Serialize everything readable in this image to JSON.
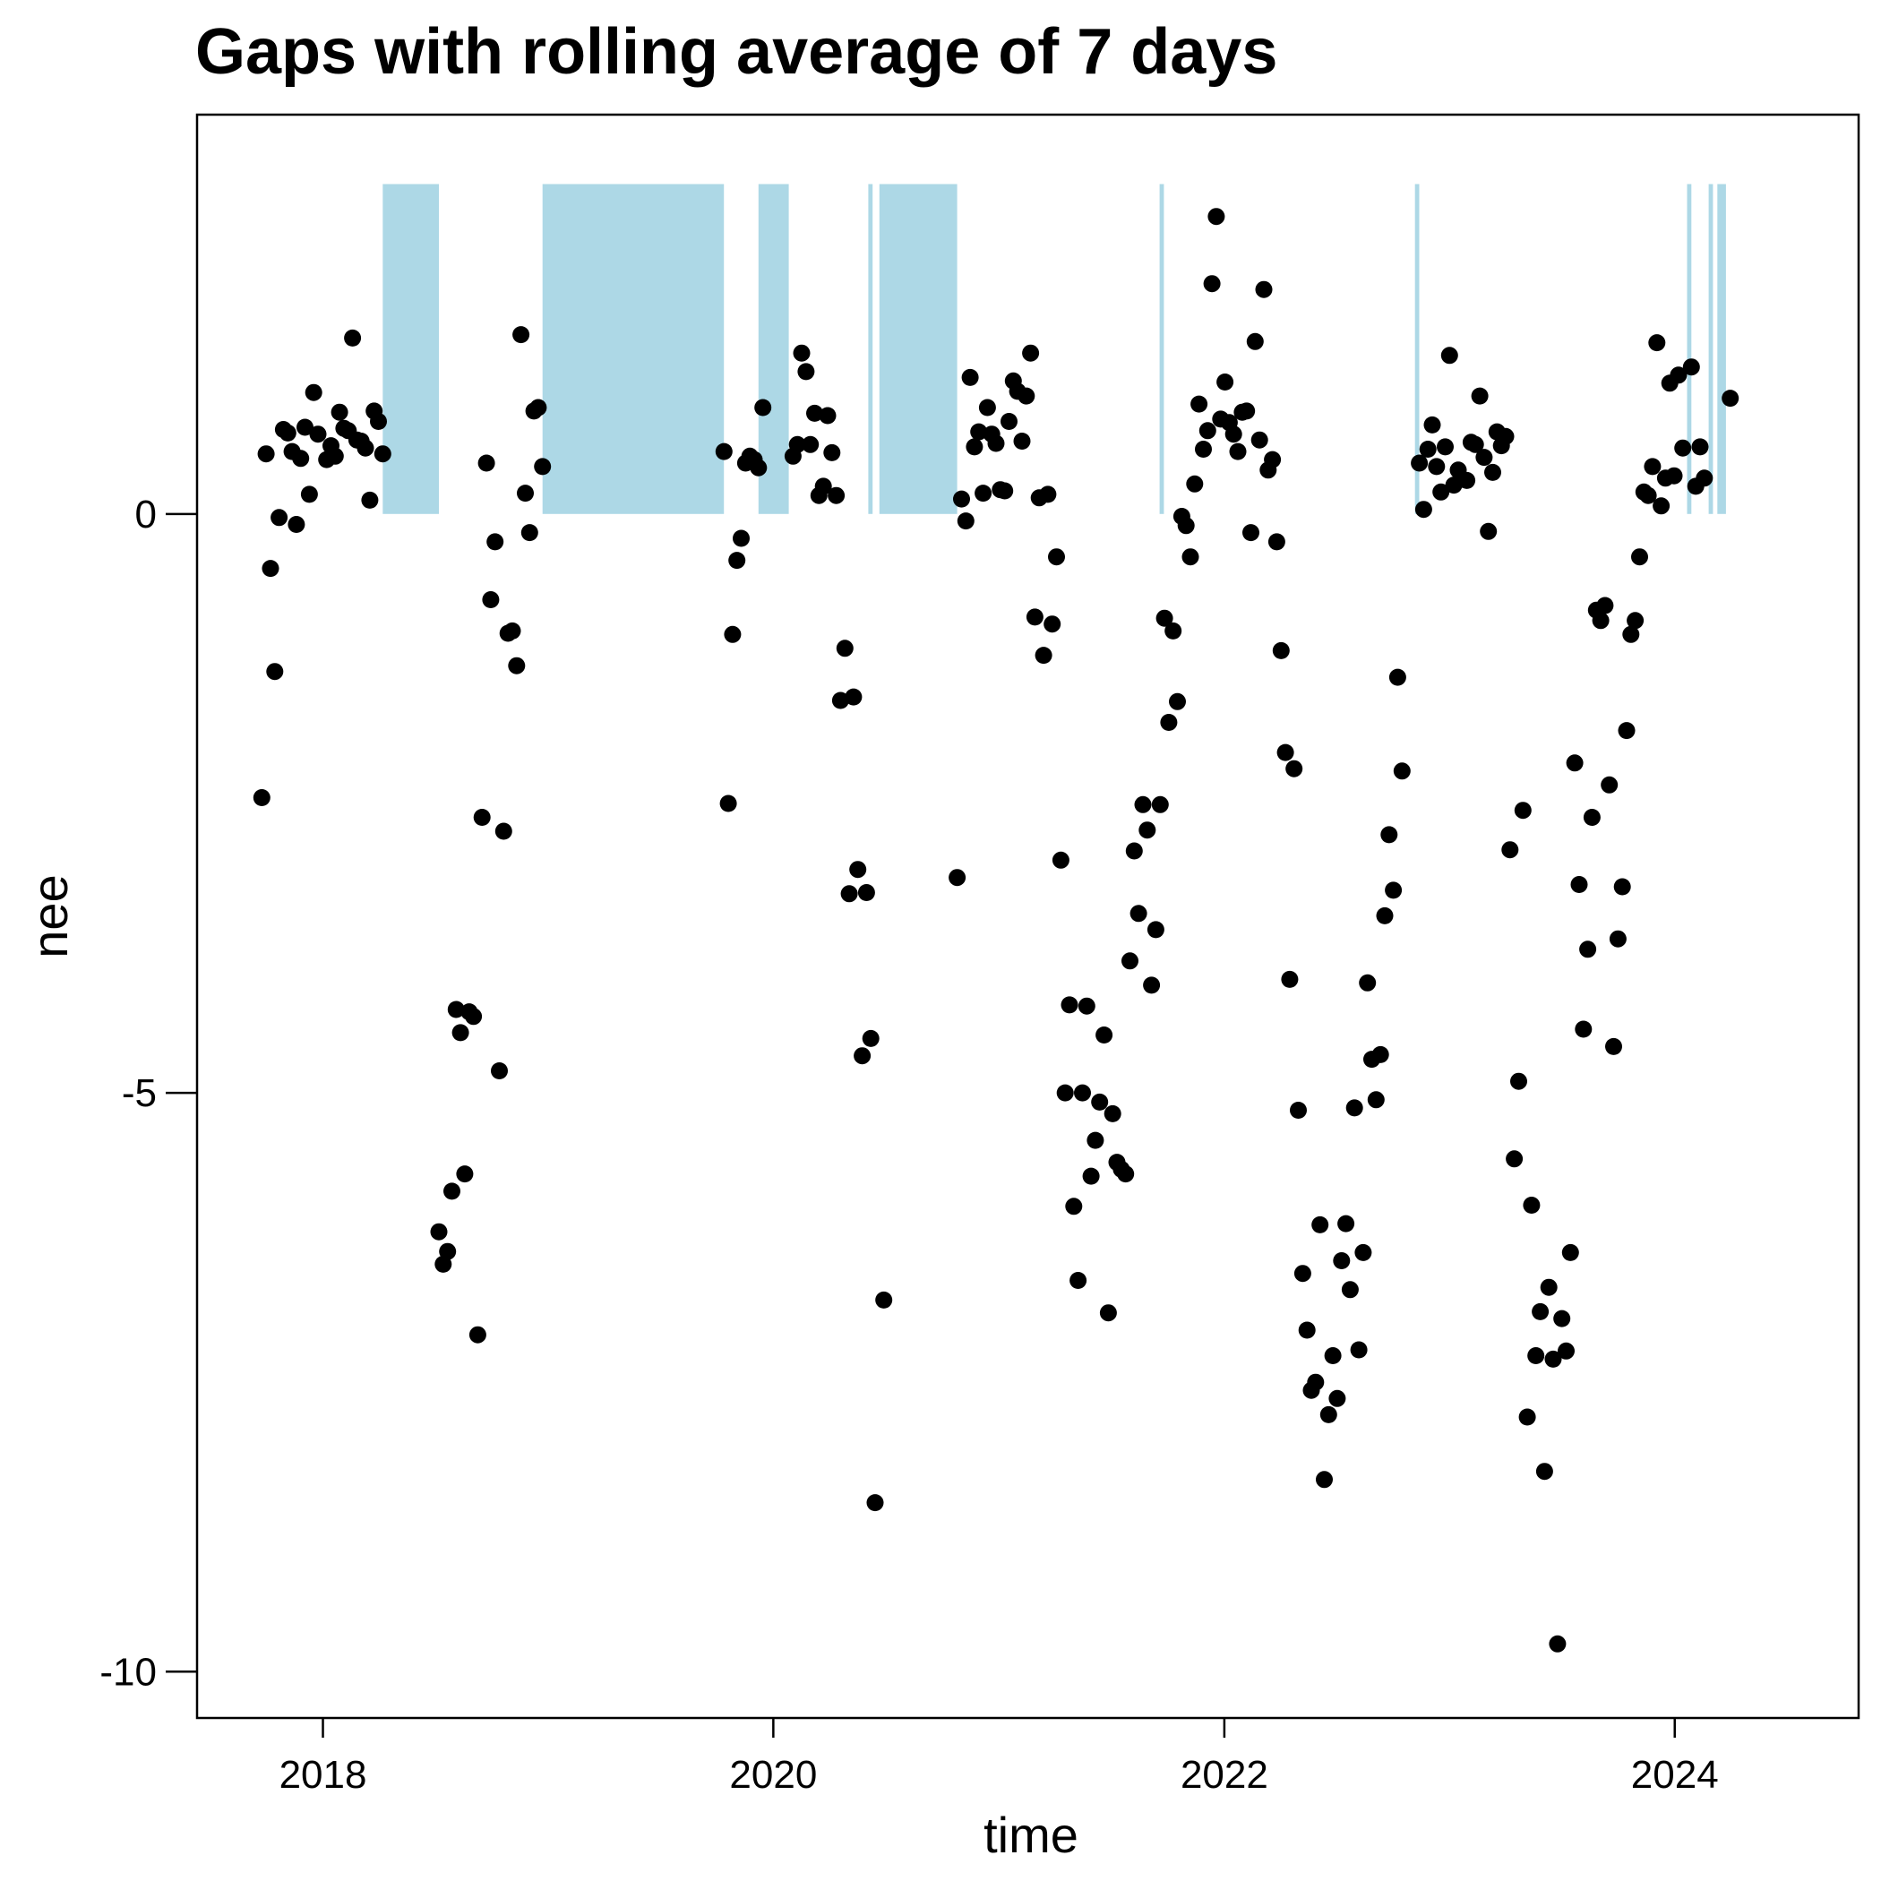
{
  "chart_data": {
    "type": "scatter",
    "title": "Gaps with rolling average of 7 days",
    "xlabel": "time",
    "ylabel": "nee",
    "xlim": [
      "2017-06-11",
      "2024-10-25"
    ],
    "ylim": [
      -10.4,
      3.45
    ],
    "x_ticks": [
      {
        "date": "2018-01-01",
        "label": "2018"
      },
      {
        "date": "2020-01-01",
        "label": "2020"
      },
      {
        "date": "2022-01-01",
        "label": "2022"
      },
      {
        "date": "2024-01-01",
        "label": "2024"
      }
    ],
    "y_ticks": [
      {
        "value": 0,
        "label": "0"
      },
      {
        "value": -5,
        "label": "-5"
      },
      {
        "value": -10,
        "label": "-10"
      }
    ],
    "gap_band_color": "#add8e6",
    "point_color": "#000000",
    "gap_bands": {
      "y_from": 0,
      "y_to": 2.85,
      "ranges": [
        [
          "2018-04-08",
          "2018-07-08"
        ],
        [
          "2018-12-23",
          "2019-10-13"
        ],
        [
          "2019-12-08",
          "2020-01-26"
        ],
        [
          "2020-06-03",
          "2020-06-10"
        ],
        [
          "2020-06-21",
          "2020-10-25"
        ],
        [
          "2021-09-18",
          "2021-09-25"
        ],
        [
          "2022-11-06",
          "2022-11-13"
        ],
        [
          "2024-01-21",
          "2024-01-28"
        ],
        [
          "2024-02-25",
          "2024-03-03"
        ],
        [
          "2024-03-10",
          "2024-03-24"
        ]
      ]
    },
    "points": [
      {
        "x": "2017-09-24",
        "y": -2.45
      },
      {
        "x": "2017-10-01",
        "y": 0.52
      },
      {
        "x": "2017-10-08",
        "y": -0.47
      },
      {
        "x": "2017-10-15",
        "y": -1.36
      },
      {
        "x": "2017-10-22",
        "y": -0.03
      },
      {
        "x": "2017-10-29",
        "y": 0.73
      },
      {
        "x": "2017-11-05",
        "y": 0.7
      },
      {
        "x": "2017-11-12",
        "y": 0.54
      },
      {
        "x": "2017-11-19",
        "y": -0.09
      },
      {
        "x": "2017-11-26",
        "y": 0.48
      },
      {
        "x": "2017-12-03",
        "y": 0.75
      },
      {
        "x": "2017-12-10",
        "y": 0.17
      },
      {
        "x": "2017-12-17",
        "y": 1.05
      },
      {
        "x": "2017-12-24",
        "y": 0.69
      },
      {
        "x": "2018-01-07",
        "y": 0.47
      },
      {
        "x": "2018-01-14",
        "y": 0.59
      },
      {
        "x": "2018-01-21",
        "y": 0.5
      },
      {
        "x": "2018-01-28",
        "y": 0.88
      },
      {
        "x": "2018-02-04",
        "y": 0.74
      },
      {
        "x": "2018-02-11",
        "y": 0.72
      },
      {
        "x": "2018-02-18",
        "y": 1.52
      },
      {
        "x": "2018-02-25",
        "y": 0.64
      },
      {
        "x": "2018-03-04",
        "y": 0.63
      },
      {
        "x": "2018-03-11",
        "y": 0.57
      },
      {
        "x": "2018-03-18",
        "y": 0.12
      },
      {
        "x": "2018-03-25",
        "y": 0.89
      },
      {
        "x": "2018-04-01",
        "y": 0.8
      },
      {
        "x": "2018-04-08",
        "y": 0.52
      },
      {
        "x": "2018-07-08",
        "y": -6.2
      },
      {
        "x": "2018-07-15",
        "y": -6.48
      },
      {
        "x": "2018-07-22",
        "y": -6.37
      },
      {
        "x": "2018-07-29",
        "y": -5.85
      },
      {
        "x": "2018-08-05",
        "y": -4.28
      },
      {
        "x": "2018-08-12",
        "y": -4.48
      },
      {
        "x": "2018-08-19",
        "y": -5.7
      },
      {
        "x": "2018-08-26",
        "y": -4.3
      },
      {
        "x": "2018-09-02",
        "y": -4.34
      },
      {
        "x": "2018-09-09",
        "y": -7.09
      },
      {
        "x": "2018-09-16",
        "y": -2.62
      },
      {
        "x": "2018-09-23",
        "y": 0.44
      },
      {
        "x": "2018-09-30",
        "y": -0.74
      },
      {
        "x": "2018-10-07",
        "y": -0.24
      },
      {
        "x": "2018-10-14",
        "y": -4.81
      },
      {
        "x": "2018-10-21",
        "y": -2.74
      },
      {
        "x": "2018-10-28",
        "y": -1.03
      },
      {
        "x": "2018-11-04",
        "y": -1.01
      },
      {
        "x": "2018-11-11",
        "y": -1.31
      },
      {
        "x": "2018-11-18",
        "y": 1.55
      },
      {
        "x": "2018-11-25",
        "y": 0.18
      },
      {
        "x": "2018-12-02",
        "y": -0.16
      },
      {
        "x": "2018-12-09",
        "y": 0.89
      },
      {
        "x": "2018-12-16",
        "y": 0.92
      },
      {
        "x": "2018-12-23",
        "y": 0.41
      },
      {
        "x": "2019-10-13",
        "y": 0.54
      },
      {
        "x": "2019-10-20",
        "y": -2.5
      },
      {
        "x": "2019-10-27",
        "y": -1.04
      },
      {
        "x": "2019-11-03",
        "y": -0.4
      },
      {
        "x": "2019-11-10",
        "y": -0.21
      },
      {
        "x": "2019-11-17",
        "y": 0.44
      },
      {
        "x": "2019-11-24",
        "y": 0.5
      },
      {
        "x": "2019-12-01",
        "y": 0.47
      },
      {
        "x": "2019-12-08",
        "y": 0.4
      },
      {
        "x": "2019-12-15",
        "y": 0.92
      },
      {
        "x": "2020-02-02",
        "y": 0.5
      },
      {
        "x": "2020-02-09",
        "y": 0.6
      },
      {
        "x": "2020-02-16",
        "y": 1.39
      },
      {
        "x": "2020-02-23",
        "y": 1.23
      },
      {
        "x": "2020-03-01",
        "y": 0.6
      },
      {
        "x": "2020-03-08",
        "y": 0.87
      },
      {
        "x": "2020-03-15",
        "y": 0.16
      },
      {
        "x": "2020-03-22",
        "y": 0.24
      },
      {
        "x": "2020-03-29",
        "y": 0.85
      },
      {
        "x": "2020-04-05",
        "y": 0.53
      },
      {
        "x": "2020-04-12",
        "y": 0.16
      },
      {
        "x": "2020-04-19",
        "y": -1.61
      },
      {
        "x": "2020-04-26",
        "y": -1.16
      },
      {
        "x": "2020-05-03",
        "y": -3.28
      },
      {
        "x": "2020-05-10",
        "y": -1.58
      },
      {
        "x": "2020-05-17",
        "y": -3.07
      },
      {
        "x": "2020-05-24",
        "y": -4.68
      },
      {
        "x": "2020-05-31",
        "y": -3.27
      },
      {
        "x": "2020-06-07",
        "y": -4.53
      },
      {
        "x": "2020-06-14",
        "y": -8.54
      },
      {
        "x": "2020-06-28",
        "y": -6.79
      },
      {
        "x": "2020-10-25",
        "y": -3.14
      },
      {
        "x": "2020-11-01",
        "y": 0.13
      },
      {
        "x": "2020-11-08",
        "y": -0.06
      },
      {
        "x": "2020-11-15",
        "y": 1.18
      },
      {
        "x": "2020-11-22",
        "y": 0.58
      },
      {
        "x": "2020-11-29",
        "y": 0.71
      },
      {
        "x": "2020-12-06",
        "y": 0.18
      },
      {
        "x": "2020-12-13",
        "y": 0.92
      },
      {
        "x": "2020-12-20",
        "y": 0.69
      },
      {
        "x": "2020-12-27",
        "y": 0.61
      },
      {
        "x": "2021-01-03",
        "y": 0.21
      },
      {
        "x": "2021-01-10",
        "y": 0.2
      },
      {
        "x": "2021-01-17",
        "y": 0.8
      },
      {
        "x": "2021-01-24",
        "y": 1.15
      },
      {
        "x": "2021-01-31",
        "y": 1.06
      },
      {
        "x": "2021-02-07",
        "y": 0.63
      },
      {
        "x": "2021-02-14",
        "y": 1.02
      },
      {
        "x": "2021-02-21",
        "y": 1.39
      },
      {
        "x": "2021-02-28",
        "y": -0.89
      },
      {
        "x": "2021-03-07",
        "y": 0.14
      },
      {
        "x": "2021-03-14",
        "y": -1.22
      },
      {
        "x": "2021-03-21",
        "y": 0.17
      },
      {
        "x": "2021-03-28",
        "y": -0.95
      },
      {
        "x": "2021-04-04",
        "y": -0.37
      },
      {
        "x": "2021-04-11",
        "y": -2.99
      },
      {
        "x": "2021-04-18",
        "y": -5
      },
      {
        "x": "2021-04-25",
        "y": -4.24
      },
      {
        "x": "2021-05-02",
        "y": -5.98
      },
      {
        "x": "2021-05-09",
        "y": -6.62
      },
      {
        "x": "2021-05-16",
        "y": -5
      },
      {
        "x": "2021-05-23",
        "y": -4.25
      },
      {
        "x": "2021-05-30",
        "y": -5.72
      },
      {
        "x": "2021-06-06",
        "y": -5.41
      },
      {
        "x": "2021-06-13",
        "y": -5.08
      },
      {
        "x": "2021-06-20",
        "y": -4.5
      },
      {
        "x": "2021-06-27",
        "y": -6.9
      },
      {
        "x": "2021-07-04",
        "y": -5.18
      },
      {
        "x": "2021-07-11",
        "y": -5.6
      },
      {
        "x": "2021-07-18",
        "y": -5.66
      },
      {
        "x": "2021-07-25",
        "y": -5.7
      },
      {
        "x": "2021-08-01",
        "y": -3.86
      },
      {
        "x": "2021-08-08",
        "y": -2.91
      },
      {
        "x": "2021-08-15",
        "y": -3.45
      },
      {
        "x": "2021-08-22",
        "y": -2.51
      },
      {
        "x": "2021-08-29",
        "y": -2.73
      },
      {
        "x": "2021-09-05",
        "y": -4.07
      },
      {
        "x": "2021-09-12",
        "y": -3.59
      },
      {
        "x": "2021-09-19",
        "y": -2.51
      },
      {
        "x": "2021-09-26",
        "y": -0.9
      },
      {
        "x": "2021-10-03",
        "y": -1.8
      },
      {
        "x": "2021-10-10",
        "y": -1.01
      },
      {
        "x": "2021-10-17",
        "y": -1.62
      },
      {
        "x": "2021-10-24",
        "y": -0.02
      },
      {
        "x": "2021-10-31",
        "y": -0.1
      },
      {
        "x": "2021-11-07",
        "y": -0.37
      },
      {
        "x": "2021-11-14",
        "y": 0.26
      },
      {
        "x": "2021-11-21",
        "y": 0.95
      },
      {
        "x": "2021-11-28",
        "y": 0.56
      },
      {
        "x": "2021-12-05",
        "y": 0.72
      },
      {
        "x": "2021-12-12",
        "y": 1.99
      },
      {
        "x": "2021-12-19",
        "y": 2.57
      },
      {
        "x": "2021-12-26",
        "y": 0.82
      },
      {
        "x": "2022-01-02",
        "y": 1.14
      },
      {
        "x": "2022-01-09",
        "y": 0.79
      },
      {
        "x": "2022-01-16",
        "y": 0.69
      },
      {
        "x": "2022-01-23",
        "y": 0.54
      },
      {
        "x": "2022-01-30",
        "y": 0.88
      },
      {
        "x": "2022-02-06",
        "y": 0.89
      },
      {
        "x": "2022-02-13",
        "y": -0.16
      },
      {
        "x": "2022-02-20",
        "y": 1.49
      },
      {
        "x": "2022-02-27",
        "y": 0.64
      },
      {
        "x": "2022-03-06",
        "y": 1.94
      },
      {
        "x": "2022-03-13",
        "y": 0.38
      },
      {
        "x": "2022-03-20",
        "y": 0.47
      },
      {
        "x": "2022-03-27",
        "y": -0.24
      },
      {
        "x": "2022-04-03",
        "y": -1.18
      },
      {
        "x": "2022-04-10",
        "y": -2.06
      },
      {
        "x": "2022-04-17",
        "y": -4.02
      },
      {
        "x": "2022-04-24",
        "y": -2.2
      },
      {
        "x": "2022-05-01",
        "y": -5.15
      },
      {
        "x": "2022-05-08",
        "y": -6.56
      },
      {
        "x": "2022-05-15",
        "y": -7.05
      },
      {
        "x": "2022-05-22",
        "y": -7.57
      },
      {
        "x": "2022-05-29",
        "y": -7.5
      },
      {
        "x": "2022-06-05",
        "y": -6.14
      },
      {
        "x": "2022-06-12",
        "y": -8.34
      },
      {
        "x": "2022-06-19",
        "y": -7.78
      },
      {
        "x": "2022-06-26",
        "y": -7.27
      },
      {
        "x": "2022-07-03",
        "y": -7.64
      },
      {
        "x": "2022-07-10",
        "y": -6.45
      },
      {
        "x": "2022-07-17",
        "y": -6.13
      },
      {
        "x": "2022-07-24",
        "y": -6.7
      },
      {
        "x": "2022-07-31",
        "y": -5.13
      },
      {
        "x": "2022-08-07",
        "y": -7.22
      },
      {
        "x": "2022-08-14",
        "y": -6.38
      },
      {
        "x": "2022-08-21",
        "y": -4.05
      },
      {
        "x": "2022-08-28",
        "y": -4.71
      },
      {
        "x": "2022-09-04",
        "y": -5.06
      },
      {
        "x": "2022-09-11",
        "y": -4.67
      },
      {
        "x": "2022-09-18",
        "y": -3.47
      },
      {
        "x": "2022-09-25",
        "y": -2.77
      },
      {
        "x": "2022-10-02",
        "y": -3.25
      },
      {
        "x": "2022-10-09",
        "y": -1.41
      },
      {
        "x": "2022-10-16",
        "y": -2.22
      },
      {
        "x": "2022-11-13",
        "y": 0.44
      },
      {
        "x": "2022-11-20",
        "y": 0.04
      },
      {
        "x": "2022-11-27",
        "y": 0.56
      },
      {
        "x": "2022-12-04",
        "y": 0.77
      },
      {
        "x": "2022-12-11",
        "y": 0.41
      },
      {
        "x": "2022-12-18",
        "y": 0.19
      },
      {
        "x": "2022-12-25",
        "y": 0.58
      },
      {
        "x": "2023-01-01",
        "y": 1.37
      },
      {
        "x": "2023-01-08",
        "y": 0.25
      },
      {
        "x": "2023-01-15",
        "y": 0.38
      },
      {
        "x": "2023-01-22",
        "y": 0.3
      },
      {
        "x": "2023-01-29",
        "y": 0.29
      },
      {
        "x": "2023-02-05",
        "y": 0.62
      },
      {
        "x": "2023-02-12",
        "y": 0.6
      },
      {
        "x": "2023-02-19",
        "y": 1.02
      },
      {
        "x": "2023-02-26",
        "y": 0.49
      },
      {
        "x": "2023-03-05",
        "y": -0.15
      },
      {
        "x": "2023-03-12",
        "y": 0.36
      },
      {
        "x": "2023-03-19",
        "y": 0.71
      },
      {
        "x": "2023-03-26",
        "y": 0.59
      },
      {
        "x": "2023-04-02",
        "y": 0.67
      },
      {
        "x": "2023-04-09",
        "y": -2.9
      },
      {
        "x": "2023-04-16",
        "y": -5.57
      },
      {
        "x": "2023-04-23",
        "y": -4.9
      },
      {
        "x": "2023-04-30",
        "y": -2.56
      },
      {
        "x": "2023-05-07",
        "y": -7.8
      },
      {
        "x": "2023-05-14",
        "y": -5.97
      },
      {
        "x": "2023-05-21",
        "y": -7.27
      },
      {
        "x": "2023-05-28",
        "y": -6.89
      },
      {
        "x": "2023-06-04",
        "y": -8.27
      },
      {
        "x": "2023-06-11",
        "y": -6.68
      },
      {
        "x": "2023-06-18",
        "y": -7.3
      },
      {
        "x": "2023-06-25",
        "y": -9.76
      },
      {
        "x": "2023-07-02",
        "y": -6.95
      },
      {
        "x": "2023-07-09",
        "y": -7.23
      },
      {
        "x": "2023-07-16",
        "y": -6.38
      },
      {
        "x": "2023-07-23",
        "y": -2.15
      },
      {
        "x": "2023-07-30",
        "y": -3.2
      },
      {
        "x": "2023-08-06",
        "y": -4.45
      },
      {
        "x": "2023-08-13",
        "y": -3.76
      },
      {
        "x": "2023-08-20",
        "y": -2.62
      },
      {
        "x": "2023-08-27",
        "y": -0.83
      },
      {
        "x": "2023-09-03",
        "y": -0.92
      },
      {
        "x": "2023-09-10",
        "y": -0.79
      },
      {
        "x": "2023-09-17",
        "y": -2.34
      },
      {
        "x": "2023-09-24",
        "y": -4.6
      },
      {
        "x": "2023-10-01",
        "y": -3.67
      },
      {
        "x": "2023-10-08",
        "y": -3.22
      },
      {
        "x": "2023-10-15",
        "y": -1.87
      },
      {
        "x": "2023-10-22",
        "y": -1.04
      },
      {
        "x": "2023-10-29",
        "y": -0.92
      },
      {
        "x": "2023-11-05",
        "y": -0.37
      },
      {
        "x": "2023-11-12",
        "y": 0.19
      },
      {
        "x": "2023-11-19",
        "y": 0.16
      },
      {
        "x": "2023-11-26",
        "y": 0.41
      },
      {
        "x": "2023-12-03",
        "y": 1.48
      },
      {
        "x": "2023-12-10",
        "y": 0.07
      },
      {
        "x": "2023-12-17",
        "y": 0.31
      },
      {
        "x": "2023-12-24",
        "y": 1.13
      },
      {
        "x": "2023-12-31",
        "y": 0.33
      },
      {
        "x": "2024-01-07",
        "y": 1.2
      },
      {
        "x": "2024-01-14",
        "y": 0.57
      },
      {
        "x": "2024-01-28",
        "y": 1.27
      },
      {
        "x": "2024-02-04",
        "y": 0.24
      },
      {
        "x": "2024-02-11",
        "y": 0.58
      },
      {
        "x": "2024-02-18",
        "y": 0.31
      },
      {
        "x": "2024-03-31",
        "y": 1.0
      }
    ]
  }
}
